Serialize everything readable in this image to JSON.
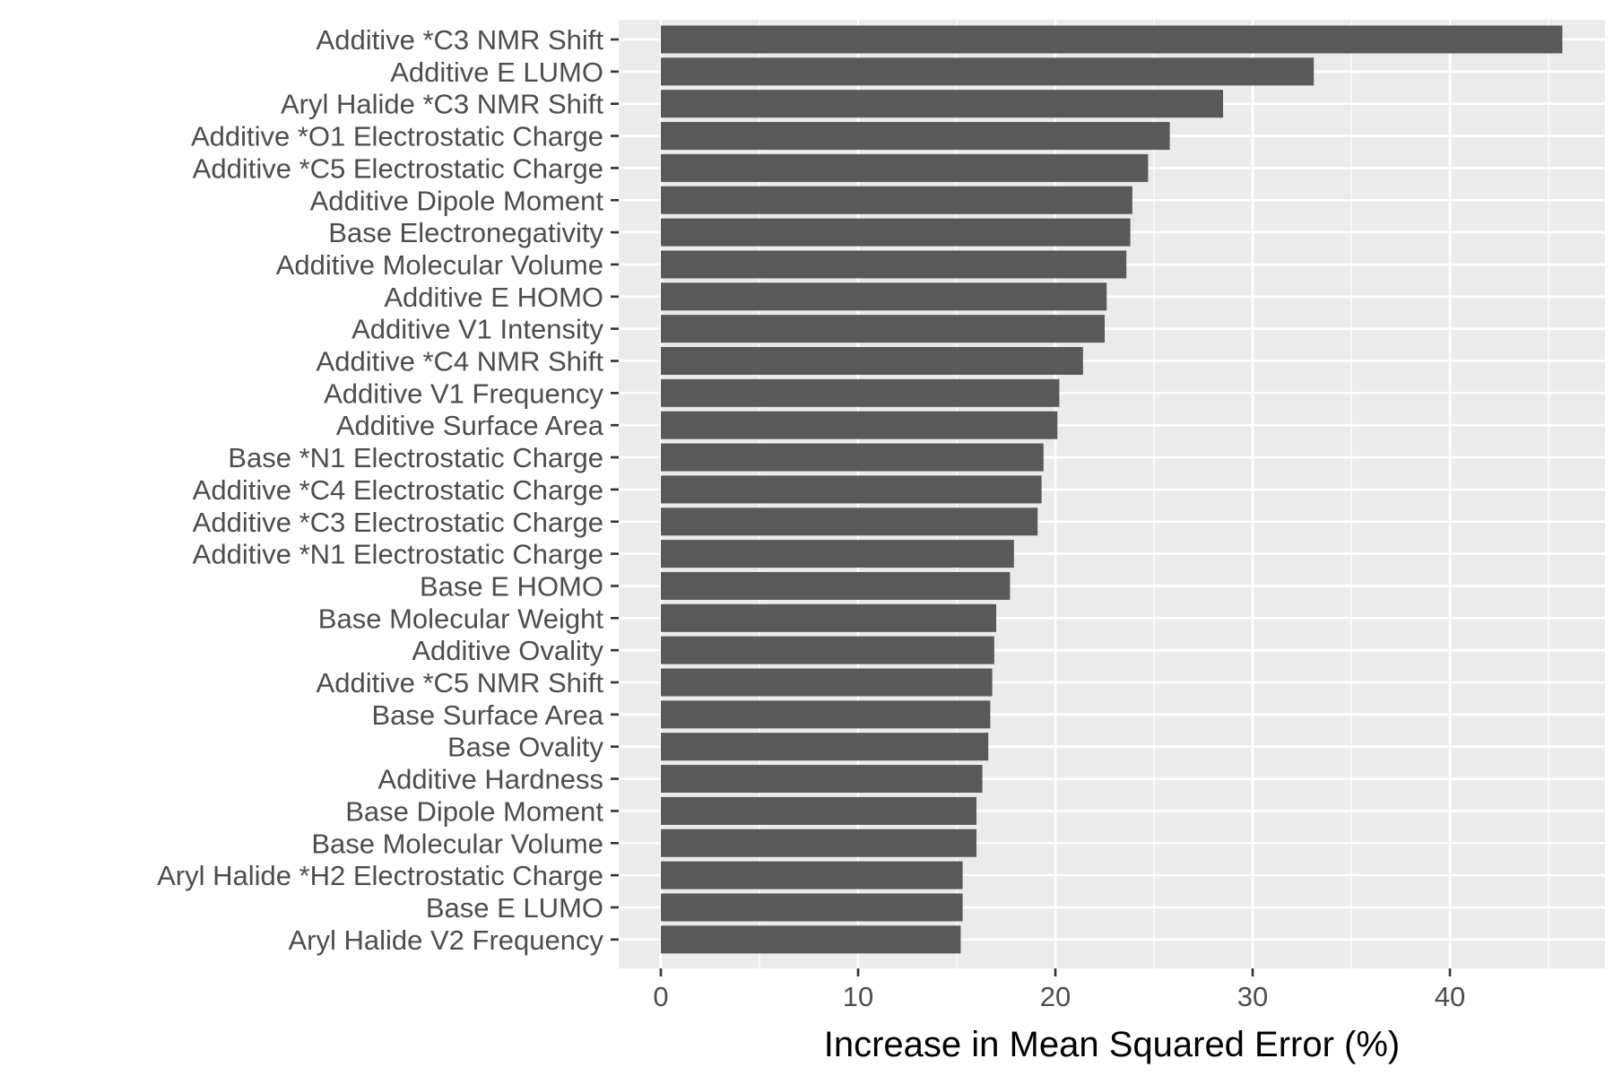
{
  "chart_data": {
    "type": "bar",
    "orientation": "horizontal",
    "categories": [
      "Additive *C3 NMR Shift",
      "Additive E LUMO",
      "Aryl Halide *C3 NMR Shift",
      "Additive *O1 Electrostatic Charge",
      "Additive *C5 Electrostatic Charge",
      "Additive Dipole Moment",
      "Base Electronegativity",
      "Additive Molecular Volume",
      "Additive E HOMO",
      "Additive V1 Intensity",
      "Additive *C4 NMR Shift",
      "Additive V1 Frequency",
      "Additive Surface Area",
      "Base *N1 Electrostatic Charge",
      "Additive *C4 Electrostatic Charge",
      "Additive *C3 Electrostatic Charge",
      "Additive *N1 Electrostatic Charge",
      "Base E HOMO",
      "Base Molecular Weight",
      "Additive Ovality",
      "Additive *C5 NMR Shift",
      "Base Surface Area",
      "Base Ovality",
      "Additive Hardness",
      "Base Dipole Moment",
      "Base Molecular Volume",
      "Aryl Halide *H2 Electrostatic Charge",
      "Base E LUMO",
      "Aryl Halide V2 Frequency"
    ],
    "values": [
      45.7,
      33.1,
      28.5,
      25.8,
      24.7,
      23.9,
      23.8,
      23.6,
      22.6,
      22.5,
      21.4,
      20.2,
      20.1,
      19.4,
      19.3,
      19.1,
      17.9,
      17.7,
      17.0,
      16.9,
      16.8,
      16.7,
      16.6,
      16.3,
      16.0,
      16.0,
      15.3,
      15.3,
      15.2
    ],
    "xlabel": "Increase in Mean Squared Error (%)",
    "ylabel": "",
    "xlim": [
      -2.2,
      47.9
    ],
    "xticks": [
      0,
      10,
      20,
      30,
      40
    ],
    "xtick_labels": [
      "0",
      "10",
      "20",
      "30",
      "40"
    ],
    "grid": true,
    "legend": "none",
    "colors": {
      "bar": "#595959",
      "panel": "#ebebeb",
      "grid": "#ffffff",
      "text": "#4d4d4d"
    }
  }
}
